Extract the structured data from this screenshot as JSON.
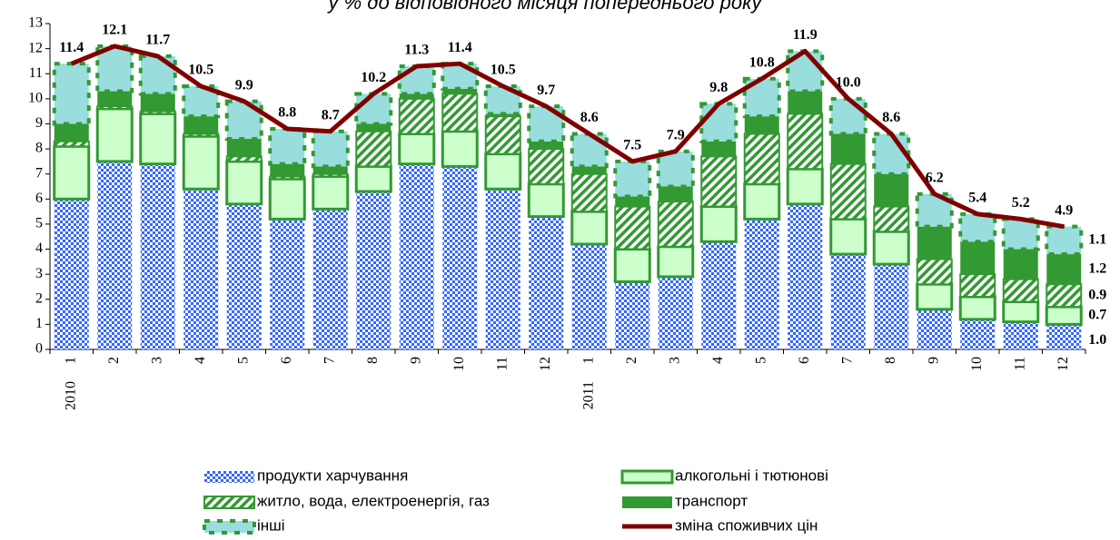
{
  "chart_data": {
    "type": "stacked-bar-line",
    "title": "у % до відповідного місяця попереднього року",
    "categories": [
      "1",
      "2",
      "3",
      "4",
      "5",
      "6",
      "7",
      "8",
      "9",
      "10",
      "11",
      "12",
      "1",
      "2",
      "3",
      "4",
      "5",
      "6",
      "7",
      "8",
      "9",
      "10",
      "11",
      "12"
    ],
    "years": [
      "2010",
      null,
      null,
      null,
      null,
      null,
      null,
      null,
      null,
      null,
      null,
      null,
      "2011",
      null,
      null,
      null,
      null,
      null,
      null,
      null,
      null,
      null,
      null,
      null
    ],
    "ylim": [
      0,
      13
    ],
    "yticks": [
      0,
      1,
      2,
      3,
      4,
      5,
      6,
      7,
      8,
      9,
      10,
      11,
      12,
      13
    ],
    "series": [
      {
        "name": "продукти харчування",
        "style": "checker",
        "color": "#3366ff",
        "values": [
          6.0,
          7.5,
          7.4,
          6.4,
          5.8,
          5.2,
          5.6,
          6.3,
          7.4,
          7.3,
          6.4,
          5.3,
          4.2,
          2.7,
          2.9,
          4.3,
          5.2,
          5.8,
          3.8,
          3.4,
          1.6,
          1.2,
          1.1,
          1.0
        ],
        "value_labels": [
          null,
          null,
          null,
          null,
          null,
          null,
          null,
          null,
          null,
          null,
          null,
          null,
          null,
          null,
          null,
          null,
          null,
          null,
          null,
          null,
          null,
          null,
          null,
          "1.0"
        ]
      },
      {
        "name": "алкогольні і тютюнові",
        "style": "solid-border",
        "color": "#ccffcc",
        "values": [
          2.1,
          2.1,
          2.0,
          2.1,
          1.7,
          1.6,
          1.3,
          1.0,
          1.2,
          1.4,
          1.4,
          1.3,
          1.3,
          1.3,
          1.2,
          1.4,
          1.4,
          1.4,
          1.4,
          1.3,
          1.0,
          0.9,
          0.8,
          0.7
        ],
        "value_labels": [
          null,
          null,
          null,
          null,
          null,
          null,
          null,
          null,
          null,
          null,
          null,
          null,
          null,
          null,
          null,
          null,
          null,
          null,
          null,
          null,
          null,
          null,
          null,
          "0.7"
        ]
      },
      {
        "name": "житло, вода, електроенергія, газ",
        "style": "hatch",
        "color": "#339933",
        "values": [
          0.2,
          0.1,
          0.1,
          0.1,
          0.2,
          0.1,
          0.1,
          1.4,
          1.4,
          1.5,
          1.5,
          1.4,
          1.5,
          1.7,
          1.8,
          2.0,
          2.0,
          2.2,
          2.2,
          1.0,
          1.0,
          0.9,
          0.9,
          0.9
        ],
        "value_labels": [
          null,
          null,
          null,
          null,
          null,
          null,
          null,
          null,
          null,
          null,
          null,
          null,
          null,
          null,
          null,
          null,
          null,
          null,
          null,
          null,
          null,
          null,
          null,
          "0.9"
        ]
      },
      {
        "name": "транспорт",
        "style": "solid",
        "color": "#339933",
        "values": [
          0.7,
          0.6,
          0.7,
          0.7,
          0.7,
          0.5,
          0.3,
          0.3,
          0.2,
          0.2,
          0.1,
          0.3,
          0.3,
          0.4,
          0.6,
          0.6,
          0.7,
          0.9,
          1.2,
          1.3,
          1.3,
          1.3,
          1.2,
          1.2
        ],
        "value_labels": [
          null,
          null,
          null,
          null,
          null,
          null,
          null,
          null,
          null,
          null,
          null,
          null,
          null,
          null,
          null,
          null,
          null,
          null,
          null,
          null,
          null,
          null,
          null,
          "1.2"
        ]
      },
      {
        "name": "інші",
        "style": "dashed-border",
        "color": "#99dddd",
        "values": [
          2.4,
          1.8,
          1.5,
          1.2,
          1.5,
          1.4,
          1.4,
          1.2,
          1.1,
          1.0,
          1.1,
          1.4,
          1.3,
          1.4,
          1.4,
          1.5,
          1.5,
          1.6,
          1.4,
          1.6,
          1.3,
          1.1,
          1.2,
          1.1
        ],
        "value_labels": [
          null,
          null,
          null,
          null,
          null,
          null,
          null,
          null,
          null,
          null,
          null,
          null,
          null,
          null,
          null,
          null,
          null,
          null,
          null,
          null,
          null,
          null,
          null,
          "1.1"
        ]
      }
    ],
    "line": {
      "name": "зміна споживчих цін",
      "color": "#800000",
      "values": [
        11.4,
        12.1,
        11.7,
        10.5,
        9.9,
        8.8,
        8.7,
        10.2,
        11.3,
        11.4,
        10.5,
        9.7,
        8.6,
        7.5,
        7.9,
        9.8,
        10.8,
        11.9,
        10.0,
        8.6,
        6.2,
        5.4,
        5.2,
        4.9
      ],
      "value_labels": [
        "11.4",
        "12.1",
        "11.7",
        "10.5",
        "9.9",
        "8.8",
        "8.7",
        "10.2",
        "11.3",
        "11.4",
        "10.5",
        "9.7",
        "8.6",
        "7.5",
        "7.9",
        "9.8",
        "10.8",
        "11.9",
        "10.0",
        "8.6",
        "6.2",
        "5.4",
        "5.2",
        "4.9"
      ]
    }
  }
}
